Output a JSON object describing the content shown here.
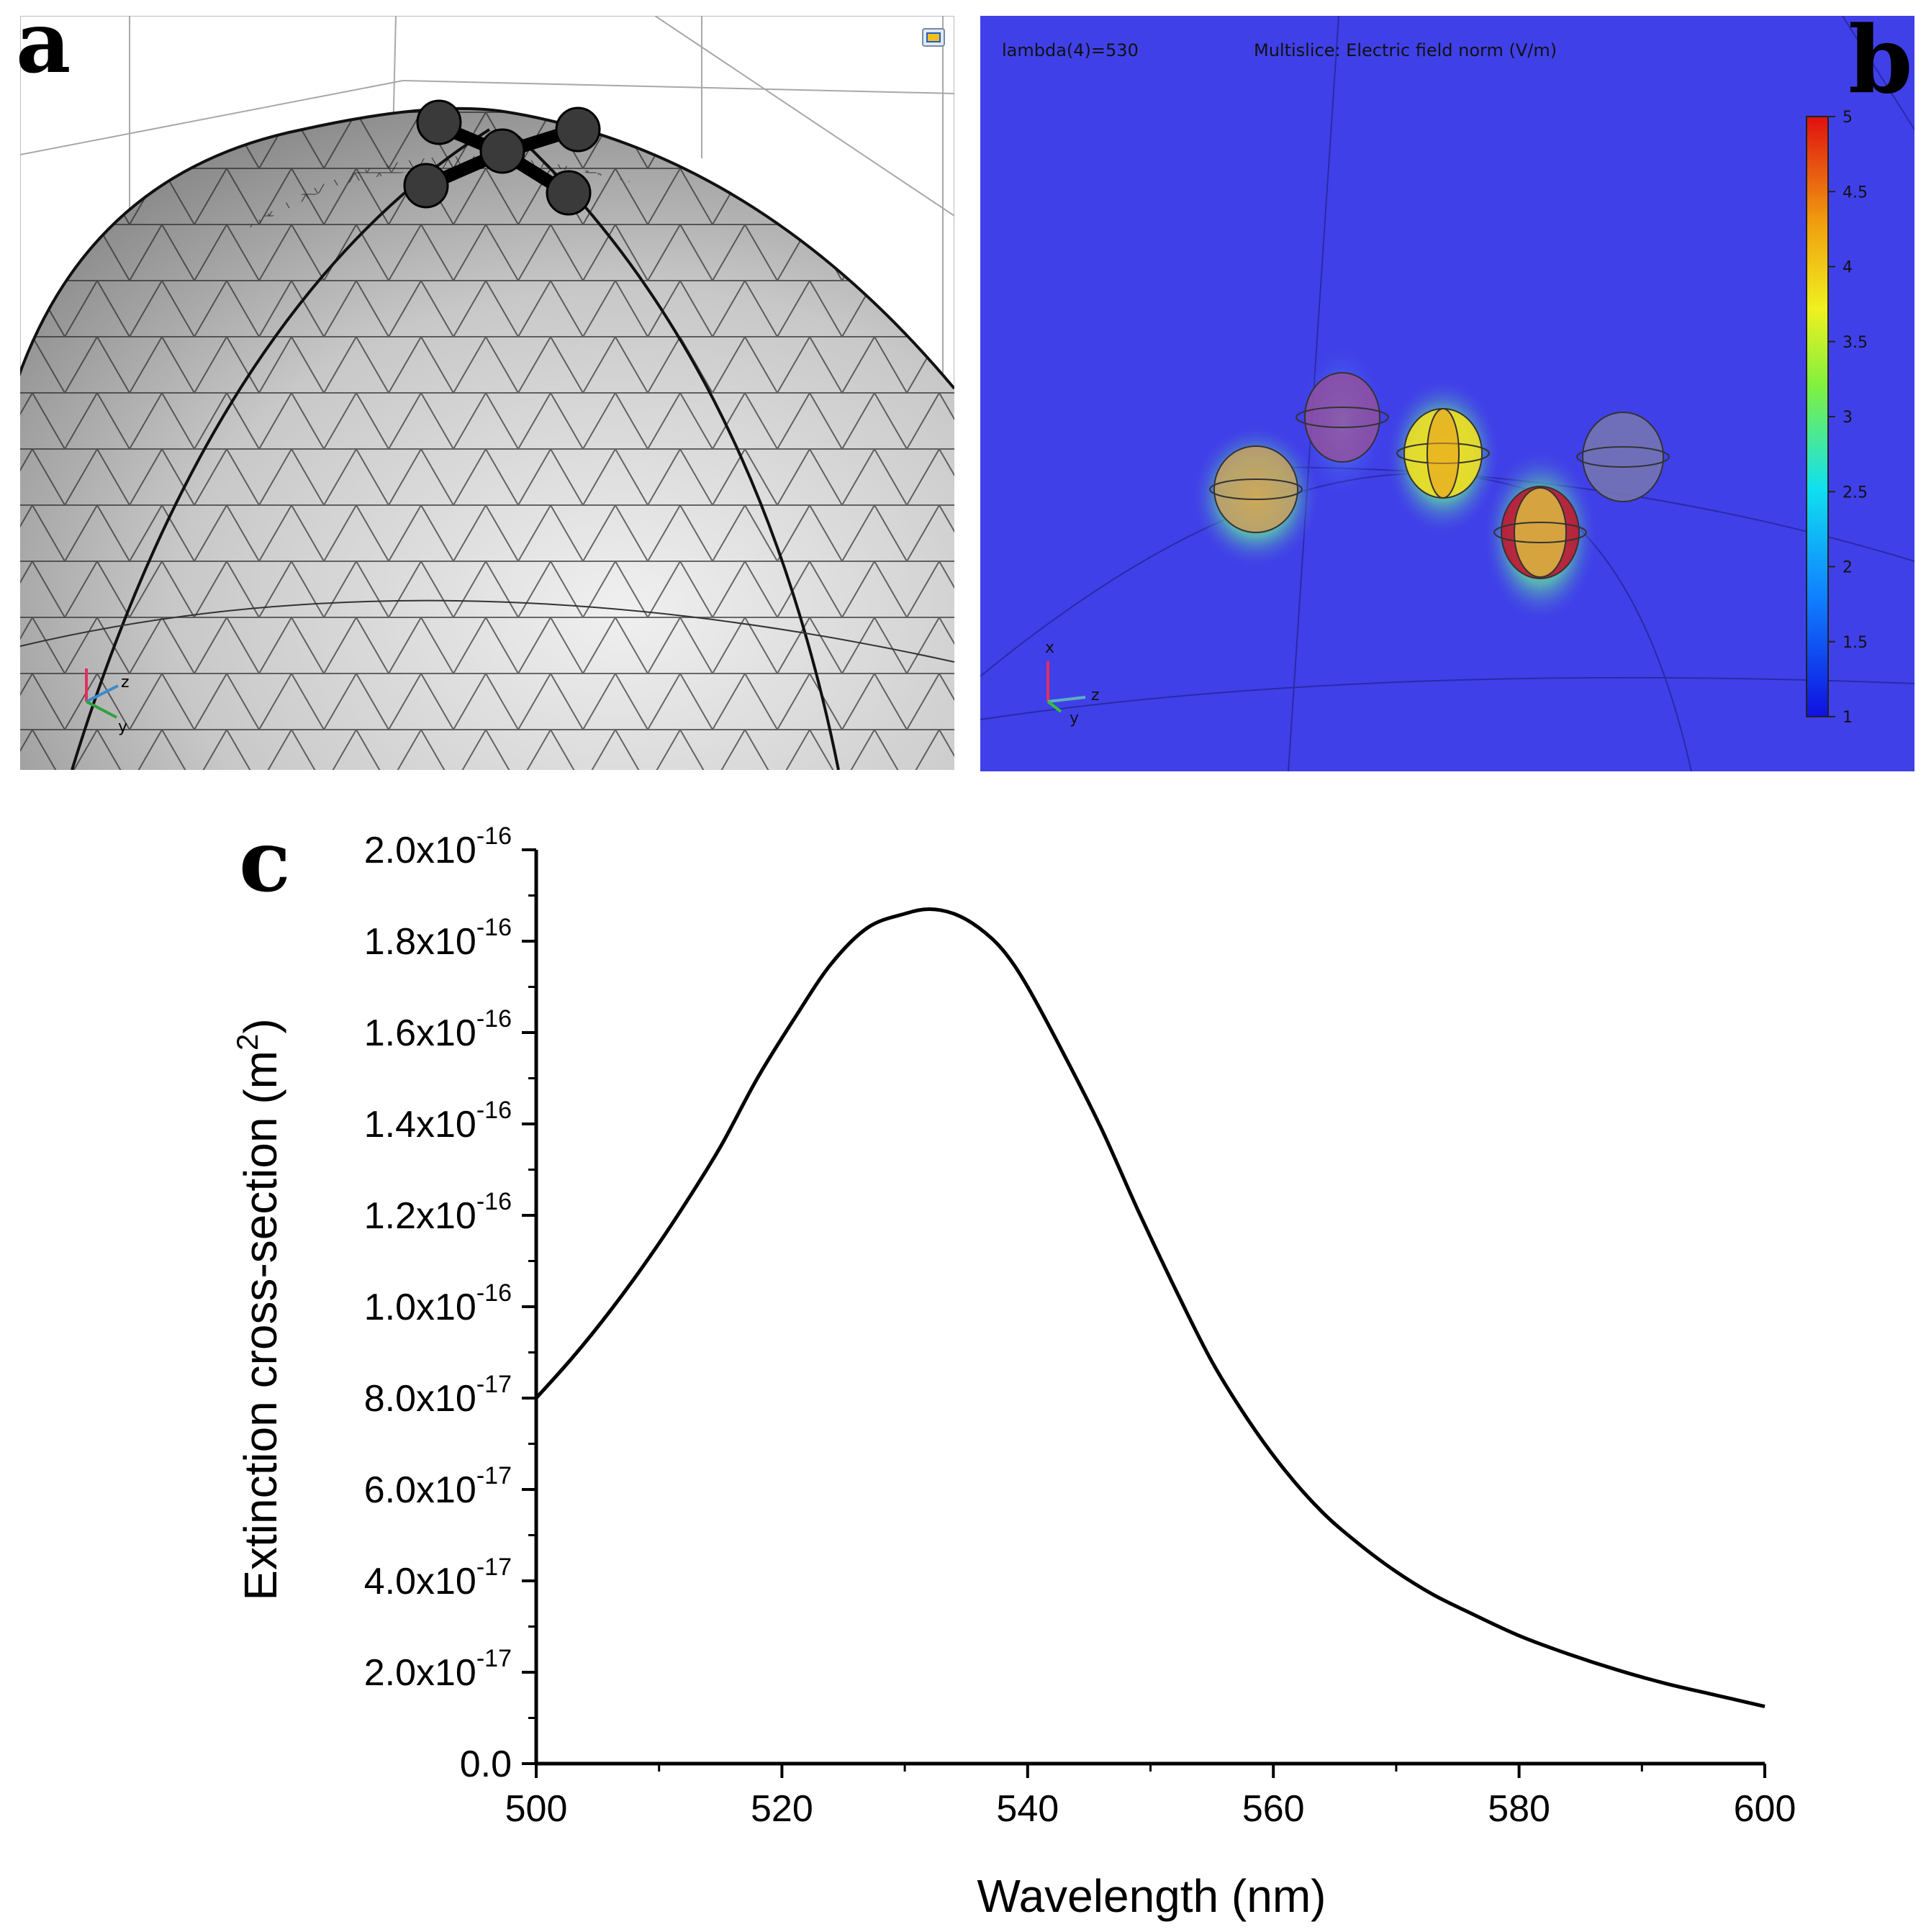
{
  "figure": {
    "panels": [
      {
        "letter": "a",
        "description_kind": "mesh-view"
      },
      {
        "letter": "b",
        "description_kind": "field-map"
      },
      {
        "letter": "c",
        "description_kind": "spectrum"
      }
    ]
  },
  "panel_a": {
    "letter": "a",
    "triad": {
      "x": "x",
      "y": "y",
      "z": "z"
    }
  },
  "panel_b": {
    "letter": "b",
    "param_label": "lambda(4)=530",
    "plot_title": "Multislice: Electric field norm (V/m)",
    "colorbar": {
      "ticks": [
        "5",
        "4.5",
        "4",
        "3.5",
        "3",
        "2.5",
        "2",
        "1.5",
        "1"
      ],
      "min": 1,
      "max": 5
    },
    "triad": {
      "x": "x",
      "y": "y",
      "z": "z"
    },
    "colors": {
      "background": "#4040e8",
      "hot": "#e02020",
      "warm": "#f0e020",
      "cool": "#20c0f0"
    }
  },
  "chart_data": {
    "type": "line",
    "letter": "c",
    "xlabel": "Wavelength (nm)",
    "ylabel_main": "Extinction cross-section (m",
    "ylabel_sup": "2",
    "ylabel_end": ")",
    "xlim": [
      500,
      600
    ],
    "ylim": [
      0,
      2e-16
    ],
    "xticks": [
      {
        "value": 500,
        "label": "500"
      },
      {
        "value": 520,
        "label": "520"
      },
      {
        "value": 540,
        "label": "540"
      },
      {
        "value": 560,
        "label": "560"
      },
      {
        "value": 580,
        "label": "580"
      },
      {
        "value": 600,
        "label": "600"
      }
    ],
    "yticks": [
      {
        "value": 0,
        "mantissa": "0.0",
        "exp": ""
      },
      {
        "value": 2e-17,
        "mantissa": "2.0x10",
        "exp": "-17"
      },
      {
        "value": 4e-17,
        "mantissa": "4.0x10",
        "exp": "-17"
      },
      {
        "value": 6e-17,
        "mantissa": "6.0x10",
        "exp": "-17"
      },
      {
        "value": 8e-17,
        "mantissa": "8.0x10",
        "exp": "-17"
      },
      {
        "value": 1e-16,
        "mantissa": "1.0x10",
        "exp": "-16"
      },
      {
        "value": 1.2e-16,
        "mantissa": "1.2x10",
        "exp": "-16"
      },
      {
        "value": 1.4e-16,
        "mantissa": "1.4x10",
        "exp": "-16"
      },
      {
        "value": 1.6e-16,
        "mantissa": "1.6x10",
        "exp": "-16"
      },
      {
        "value": 1.8e-16,
        "mantissa": "1.8x10",
        "exp": "-16"
      },
      {
        "value": 2e-16,
        "mantissa": "2.0x10",
        "exp": "-16"
      }
    ],
    "series": [
      {
        "name": "Extinction cross-section",
        "x": [
          500,
          503,
          506,
          509,
          512,
          515,
          518,
          521,
          524,
          527,
          530,
          532,
          534,
          536,
          538,
          540,
          543,
          546,
          549,
          552,
          555,
          558,
          561,
          564,
          567,
          570,
          573,
          576,
          580,
          584,
          588,
          592,
          596,
          600
        ],
        "y": [
          8e-17,
          8.9e-17,
          9.9e-17,
          1.1e-16,
          1.22e-16,
          1.35e-16,
          1.5e-16,
          1.63e-16,
          1.75e-16,
          1.83e-16,
          1.86e-16,
          1.87e-16,
          1.86e-16,
          1.83e-16,
          1.78e-16,
          1.7e-16,
          1.55e-16,
          1.39e-16,
          1.21e-16,
          1.04e-16,
          8.8e-17,
          7.5e-17,
          6.4e-17,
          5.5e-17,
          4.8e-17,
          4.2e-17,
          3.7e-17,
          3.3e-17,
          2.8e-17,
          2.4e-17,
          2.05e-17,
          1.75e-17,
          1.5e-17,
          1.25e-17
        ]
      }
    ],
    "line_color": "#000000"
  }
}
